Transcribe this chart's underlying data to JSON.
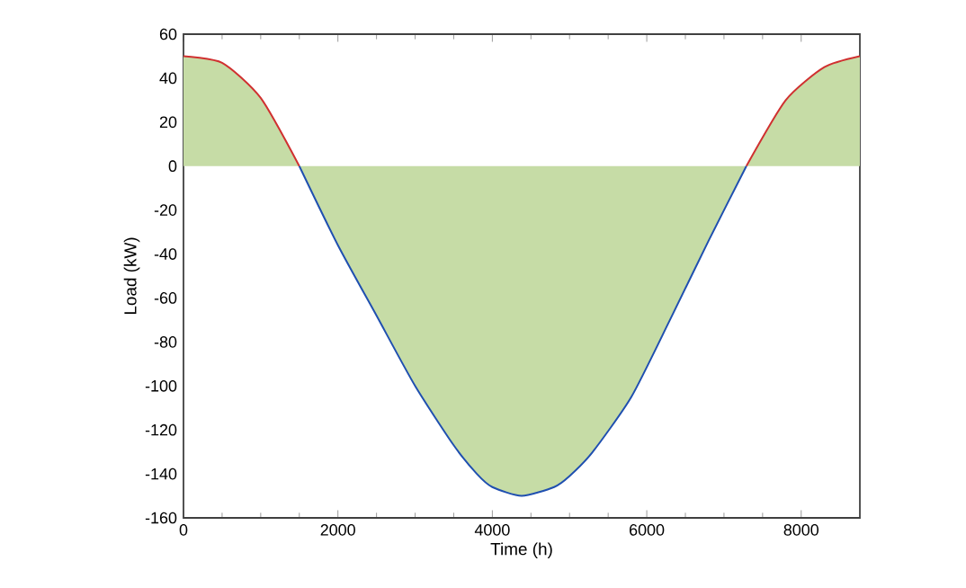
{
  "chart_data": {
    "type": "line",
    "xlabel": "Time (h)",
    "ylabel": "Load (kW)",
    "xlim": [
      0,
      8760
    ],
    "xticks": [
      0,
      2000,
      4000,
      6000,
      8000
    ],
    "ylim": [
      -160,
      60
    ],
    "yticks": [
      -160,
      -140,
      -120,
      -100,
      -80,
      -60,
      -40,
      -20,
      0,
      20,
      40,
      60
    ],
    "series": [
      {
        "type": "area",
        "color": "#c6dca6",
        "x": [
          0,
          500,
          1000,
          1500,
          2000,
          2500,
          3000,
          3500,
          3800,
          4000,
          4380,
          4800,
          5000,
          5300,
          5800,
          6300,
          6800,
          7290,
          7800,
          8300,
          8760
        ],
        "values": [
          50,
          47,
          31,
          0,
          -36,
          -68,
          -100,
          -127,
          -140,
          -146,
          -150,
          -146,
          -141,
          -130,
          -105,
          -70,
          -34,
          0,
          30,
          45,
          50
        ]
      },
      {
        "color": "#d03030",
        "x": [
          0,
          500,
          1000,
          1500,
          4380,
          7290,
          7800,
          8300,
          8760
        ],
        "values": [
          50,
          47,
          31,
          0,
          null,
          0,
          30,
          45,
          50
        ]
      },
      {
        "color": "#1f4fb0",
        "x": [
          1500,
          2000,
          2500,
          3000,
          3500,
          3800,
          4000,
          4380,
          4800,
          5000,
          5300,
          5800,
          6300,
          6800,
          7290
        ],
        "values": [
          0,
          -36,
          -68,
          -100,
          -127,
          -140,
          -146,
          -150,
          -146,
          -141,
          -130,
          -105,
          -70,
          -34,
          0
        ]
      }
    ]
  }
}
